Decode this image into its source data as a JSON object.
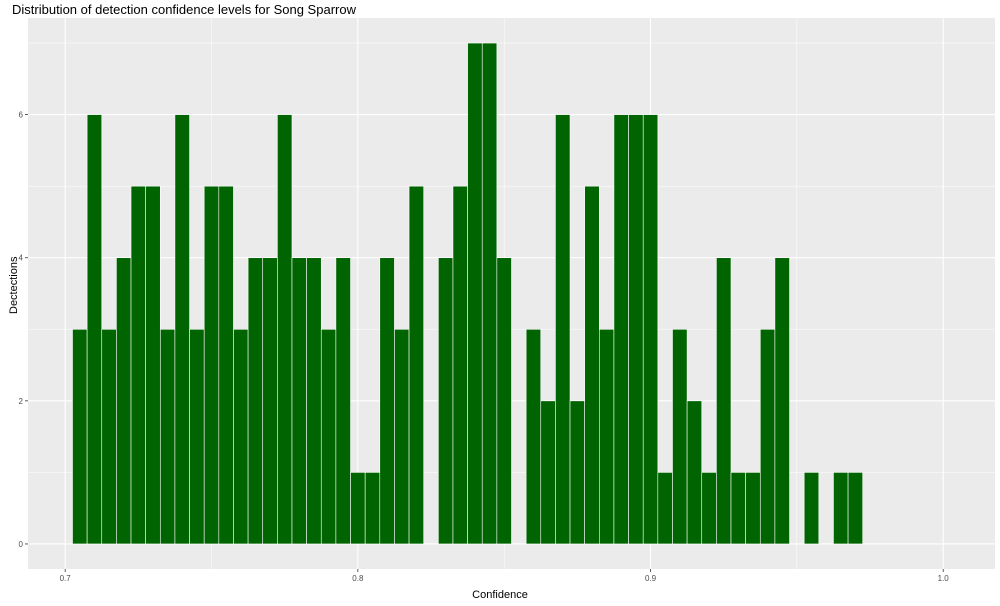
{
  "chart_data": {
    "type": "bar",
    "title": "Distribution of detection confidence levels for Song Sparrow",
    "xlabel": "Confidence",
    "ylabel": "Dectections",
    "xlim": [
      0.6873,
      1.0177
    ],
    "ylim": [
      -0.35,
      7.35
    ],
    "x_ticks": [
      "0.7",
      "0.8",
      "0.9",
      "1.0"
    ],
    "y_ticks": [
      "0",
      "2",
      "4",
      "6"
    ],
    "grid": true,
    "bin_start": 0.7025,
    "bin_width": 0.005,
    "values": [
      3,
      6,
      3,
      4,
      5,
      5,
      3,
      6,
      3,
      5,
      5,
      3,
      4,
      4,
      6,
      4,
      4,
      3,
      4,
      1,
      1,
      4,
      3,
      5,
      0,
      4,
      5,
      7,
      7,
      4,
      0,
      3,
      2,
      6,
      2,
      5,
      3,
      6,
      6,
      6,
      1,
      3,
      2,
      1,
      4,
      1,
      1,
      3,
      4,
      0,
      1,
      0,
      1,
      1
    ],
    "colors": {
      "bar": "#006400",
      "bar_outline": "#ffffff",
      "panel": "#ebebeb",
      "grid": "#ffffff"
    }
  }
}
